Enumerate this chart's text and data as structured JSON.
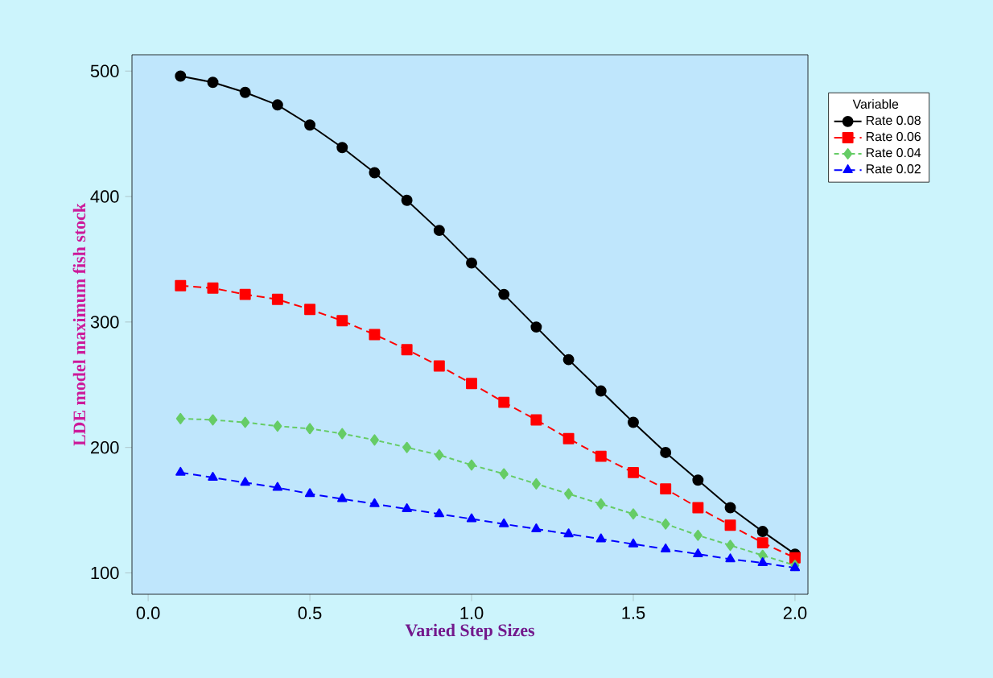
{
  "chart_data": {
    "type": "line",
    "xlabel": "Varied Step Sizes",
    "ylabel": "LDE model maximum fish stock",
    "legend_title": "Variable",
    "legend": "right",
    "xlim": [
      -0.05,
      2.04
    ],
    "ylim": [
      83,
      513
    ],
    "xticks": [
      {
        "value": 0,
        "label": "0.0"
      },
      0.5,
      {
        "value": 1,
        "label": "1.0"
      },
      1.5,
      {
        "value": 2,
        "label": "2.0"
      }
    ],
    "yticks": [
      100,
      200,
      300,
      400,
      500
    ],
    "x": [
      0.1,
      0.2,
      0.3,
      0.4,
      0.5,
      0.6,
      0.7,
      0.8,
      0.9,
      1.0,
      1.1,
      1.2,
      1.3,
      1.4,
      1.5,
      1.6,
      1.7,
      1.8,
      1.9,
      2.0
    ],
    "series": [
      {
        "name": "Rate 0.08",
        "color": "#000000",
        "marker": "circle",
        "line_style": "solid",
        "values": [
          496,
          491,
          483,
          473,
          457,
          439,
          419,
          397,
          373,
          347,
          322,
          296,
          270,
          245,
          220,
          196,
          174,
          152,
          133,
          115
        ]
      },
      {
        "name": "Rate 0.06",
        "color": "#ff0000",
        "marker": "square",
        "line_style": "dashed",
        "values": [
          329,
          327,
          322,
          318,
          310,
          301,
          290,
          278,
          265,
          251,
          236,
          222,
          207,
          193,
          180,
          167,
          152,
          138,
          124,
          112
        ]
      },
      {
        "name": "Rate 0.04",
        "color": "#66cc66",
        "marker": "diamond",
        "line_style": "dotted",
        "values": [
          223,
          222,
          220,
          217,
          215,
          211,
          206,
          200,
          194,
          186,
          179,
          171,
          163,
          155,
          147,
          139,
          130,
          122,
          114,
          106
        ]
      },
      {
        "name": "Rate 0.02",
        "color": "#0000ff",
        "marker": "triangle",
        "line_style": "dashed",
        "values": [
          180,
          176,
          172,
          168,
          163,
          159,
          155,
          151,
          147,
          143,
          139,
          135,
          131,
          127,
          123,
          119,
          115,
          111,
          108,
          104
        ]
      }
    ]
  }
}
